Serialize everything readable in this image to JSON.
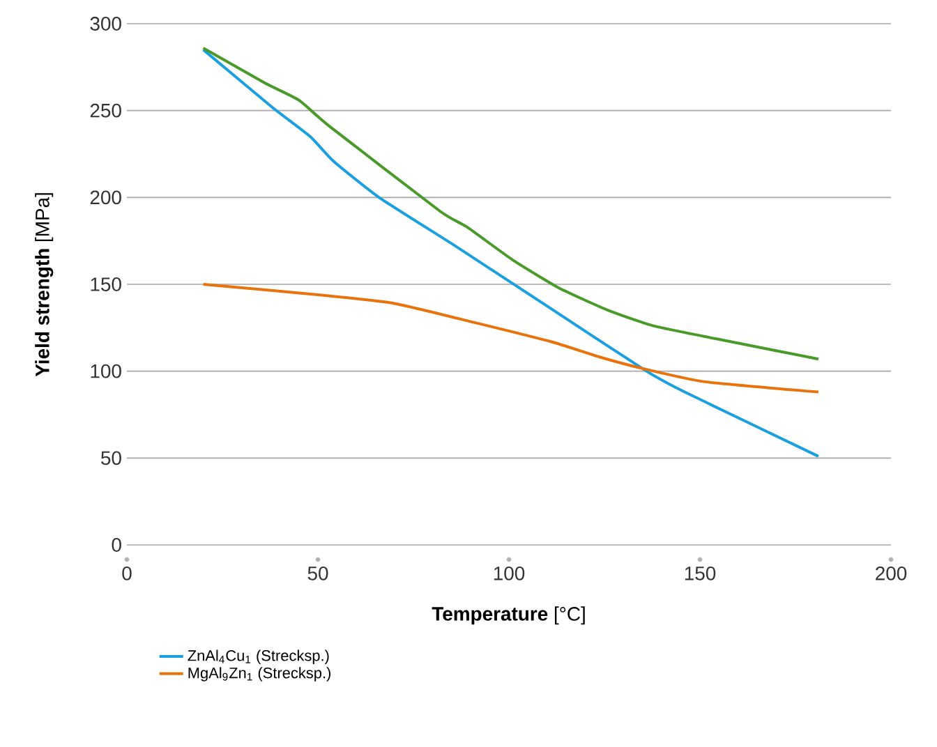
{
  "chart_data": {
    "type": "line",
    "xlabel": "**Temperature** [°C]",
    "ylabel": "**Yield strength** [MPa]",
    "xlim": [
      0,
      200
    ],
    "xticks": [
      0,
      50,
      100,
      150,
      200
    ],
    "ylim": [
      0,
      300
    ],
    "yticks": [
      0,
      50,
      100,
      150,
      200,
      250,
      300
    ],
    "grid": "y",
    "legend": "bottom",
    "series": [
      {
        "name": "ZnAl$_{4}$Cu$_{1}$ (Strecksp.)",
        "color": "#1aa0e0",
        "x": [
          20,
          38,
          48,
          54,
          66,
          86,
          111,
          136,
          146,
          181
        ],
        "values": [
          285,
          252,
          235,
          221,
          200,
          172,
          136,
          100,
          88,
          51
        ]
      },
      {
        "color": "#4a9a2a",
        "x": [
          20,
          36,
          45,
          53,
          82,
          89,
          101,
          113,
          126,
          138,
          158,
          181
        ],
        "values": [
          286,
          266,
          256,
          241,
          192,
          183,
          164,
          148,
          135,
          126,
          117,
          107
        ]
      },
      {
        "name": "MgAl$_{9}$Zn$_{1}$ (Strecksp.)",
        "color": "#e8730c",
        "x": [
          20,
          50,
          70,
          91,
          111,
          124,
          136,
          151,
          181
        ],
        "values": [
          150,
          144,
          139,
          128,
          117,
          108,
          101,
          94,
          88
        ]
      }
    ]
  }
}
